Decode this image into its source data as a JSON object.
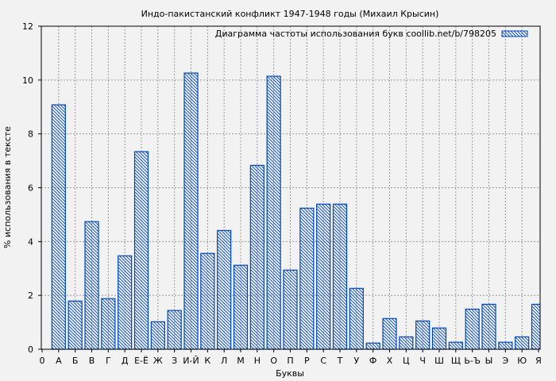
{
  "chart_data": {
    "type": "bar",
    "title": "Индо-пакистанский конфликт 1947-1948 годы (Михаил Крысин)",
    "xlabel": "Буквы",
    "ylabel": "% использования в тексте",
    "ylim": [
      0,
      12
    ],
    "yticks": [
      "0",
      "2",
      "4",
      "6",
      "8",
      "10",
      "12"
    ],
    "grid": true,
    "legend": {
      "label": "Диаграмма частоты использования букв coollib.net/b/798205",
      "placement": "top-right"
    },
    "x_origin_label": "0",
    "categories": [
      "А",
      "Б",
      "В",
      "Г",
      "Д",
      "Е-Ё",
      "Ж",
      "З",
      "И-Й",
      "К",
      "Л",
      "М",
      "Н",
      "О",
      "П",
      "Р",
      "С",
      "Т",
      "У",
      "Ф",
      "Х",
      "Ц",
      "Ч",
      "Ш",
      "Щ",
      "Ь-Ъ",
      "Ы",
      "Э",
      "Ю",
      "Я"
    ],
    "values": [
      9.08,
      1.79,
      4.74,
      1.88,
      3.47,
      7.34,
      1.02,
      1.44,
      10.26,
      3.56,
      4.41,
      3.12,
      6.83,
      10.14,
      2.94,
      5.24,
      5.39,
      5.39,
      2.26,
      0.23,
      1.14,
      0.46,
      1.05,
      0.79,
      0.26,
      1.49,
      1.67,
      0.26,
      0.46,
      1.67
    ],
    "bar_color": "#0047bb"
  }
}
